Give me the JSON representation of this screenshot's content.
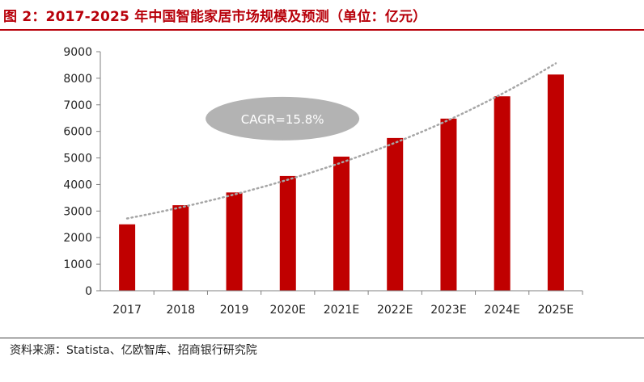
{
  "figure": {
    "title": "图 2：2017-2025 年中国智能家居市场规模及预测（单位：亿元）",
    "source": "资料来源：Statista、亿欧智库、招商银行研究院"
  },
  "chart_data": {
    "type": "bar",
    "categories": [
      "2017",
      "2018",
      "2019",
      "2020E",
      "2021E",
      "2022E",
      "2023E",
      "2024E",
      "2025E"
    ],
    "series": [
      {
        "values": [
          2500,
          3220,
          3700,
          4320,
          5050,
          5750,
          6480,
          7320,
          8140
        ]
      }
    ],
    "trendline": {
      "style": "dotted",
      "start_value": 2720,
      "end_value": 8560
    },
    "annotation": "CAGR=15.8%",
    "ylim": [
      0,
      9000
    ],
    "yticks": [
      0,
      1000,
      2000,
      3000,
      4000,
      5000,
      6000,
      7000,
      8000,
      9000
    ],
    "xlabel": "",
    "ylabel": "",
    "grid": false,
    "legend": "none",
    "colors": {
      "bar": "#c00000",
      "trend": "#a6a6a6",
      "ellipse": "#b3b3b3",
      "axis": "#808080",
      "title": "#b8000a"
    }
  }
}
